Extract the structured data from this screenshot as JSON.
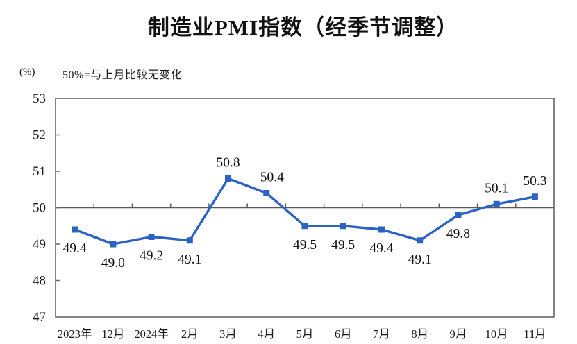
{
  "title": "制造业PMI指数（经季节调整）",
  "y_axis_unit": "(%)",
  "subtitle_note": "50%=与上月比较无变化",
  "colors": {
    "line": "#2a63c2",
    "marker": "#2a63c2",
    "axis": "#666666",
    "reference_line": "#5a5a5a",
    "text": "#1a1a1a"
  },
  "chart_data": {
    "type": "line",
    "title": "制造业PMI指数（经季节调整）",
    "ylabel": "(%)",
    "annotation": "50%=与上月比较无变化",
    "categories": [
      "2023年",
      "12月",
      "2024年",
      "2月",
      "3月",
      "4月",
      "5月",
      "6月",
      "7月",
      "8月",
      "9月",
      "10月",
      "11月"
    ],
    "values": [
      49.4,
      49.0,
      49.2,
      49.1,
      50.8,
      50.4,
      49.5,
      49.5,
      49.4,
      49.1,
      49.8,
      50.1,
      50.3
    ],
    "value_labels": [
      "49.4",
      "49.0",
      "49.2",
      "49.1",
      "50.8",
      "50.4",
      "49.5",
      "49.5",
      "49.4",
      "49.1",
      "49.8",
      "50.1",
      "50.3"
    ],
    "label_positions": [
      "below",
      "below",
      "below",
      "below",
      "above",
      "above",
      "below",
      "below",
      "below",
      "below",
      "below",
      "above",
      "above"
    ],
    "ylim": [
      47,
      53
    ],
    "yticks": [
      47,
      48,
      49,
      50,
      51,
      52,
      53
    ],
    "reference_line": 50,
    "marker": "square",
    "grid": false,
    "legend_position": "none"
  }
}
